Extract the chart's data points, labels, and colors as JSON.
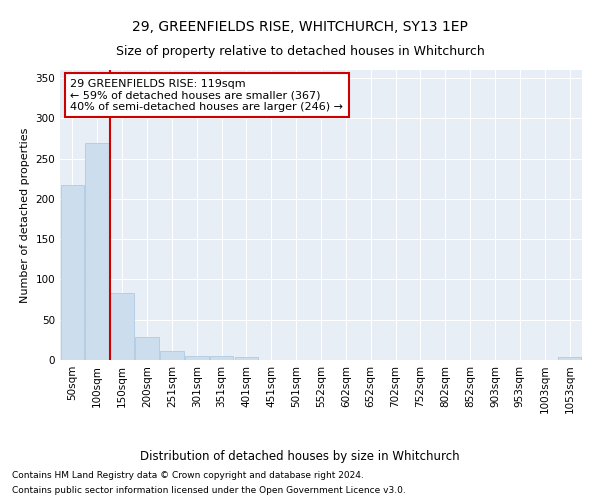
{
  "title": "29, GREENFIELDS RISE, WHITCHURCH, SY13 1EP",
  "subtitle": "Size of property relative to detached houses in Whitchurch",
  "xlabel": "Distribution of detached houses by size in Whitchurch",
  "ylabel": "Number of detached properties",
  "categories": [
    "50sqm",
    "100sqm",
    "150sqm",
    "200sqm",
    "251sqm",
    "301sqm",
    "351sqm",
    "401sqm",
    "451sqm",
    "501sqm",
    "552sqm",
    "602sqm",
    "652sqm",
    "702sqm",
    "752sqm",
    "802sqm",
    "852sqm",
    "903sqm",
    "953sqm",
    "1003sqm",
    "1053sqm"
  ],
  "values": [
    217,
    270,
    83,
    28,
    11,
    5,
    5,
    4,
    0,
    0,
    0,
    0,
    0,
    0,
    0,
    0,
    0,
    0,
    0,
    0,
    4
  ],
  "bar_color": "#ccdded",
  "bar_edge_color": "#a8c5de",
  "fig_bg_color": "#ffffff",
  "ax_bg_color": "#e8eef6",
  "grid_color": "#ffffff",
  "red_line_color": "#cc0000",
  "annotation_text": "29 GREENFIELDS RISE: 119sqm\n← 59% of detached houses are smaller (367)\n40% of semi-detached houses are larger (246) →",
  "annotation_box_color": "#ffffff",
  "annotation_box_edge": "#cc0000",
  "footnote1": "Contains HM Land Registry data © Crown copyright and database right 2024.",
  "footnote2": "Contains public sector information licensed under the Open Government Licence v3.0.",
  "ylim": [
    0,
    360
  ],
  "yticks": [
    0,
    50,
    100,
    150,
    200,
    250,
    300,
    350
  ],
  "title_fontsize": 10,
  "subtitle_fontsize": 9,
  "xlabel_fontsize": 8.5,
  "ylabel_fontsize": 8,
  "tick_fontsize": 7.5,
  "annotation_fontsize": 8,
  "footnote_fontsize": 6.5
}
